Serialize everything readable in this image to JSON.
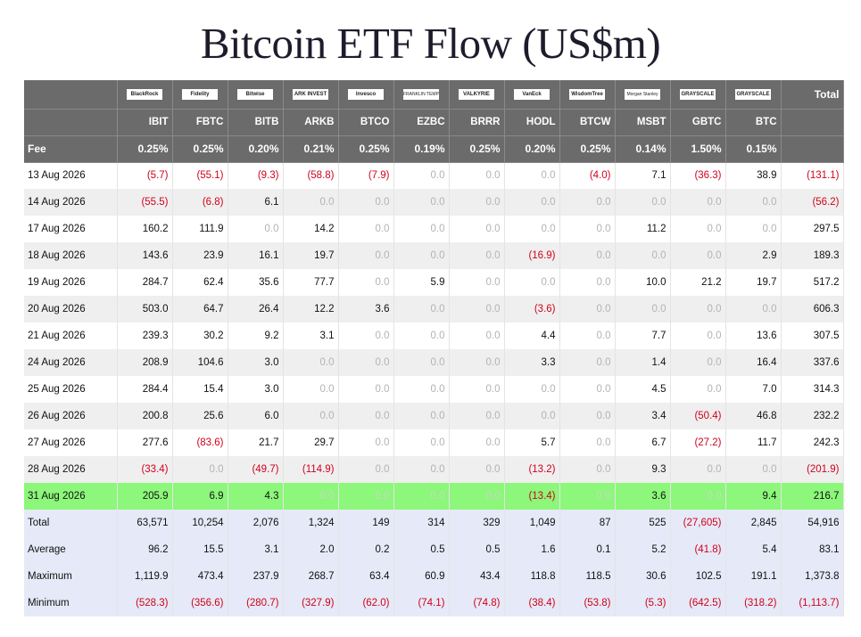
{
  "title": "Bitcoin ETF Flow (US$m)",
  "colors": {
    "header_bg": "#6b6b6b",
    "negative": "#d0021b",
    "zero": "#b3b3b3",
    "highlight": "#8cf77a",
    "stats_bg": "#e6e9f7"
  },
  "header": {
    "total_label": "Total",
    "fee_label": "Fee",
    "logos": [
      "BlackRock",
      "Fidelity",
      "Bitwise",
      "ARK INVEST",
      "Invesco",
      "FRANKLIN TEMPLETON",
      "VALKYRIE",
      "VanEck",
      "WisdomTree",
      "Morgan Stanley",
      "GRAYSCALE",
      "GRAYSCALE"
    ],
    "tickers": [
      "IBIT",
      "FBTC",
      "BITB",
      "ARKB",
      "BTCO",
      "EZBC",
      "BRRR",
      "HODL",
      "BTCW",
      "MSBT",
      "GBTC",
      "BTC"
    ],
    "fees": [
      "0.25%",
      "0.25%",
      "0.20%",
      "0.21%",
      "0.25%",
      "0.19%",
      "0.25%",
      "0.20%",
      "0.25%",
      "0.14%",
      "1.50%",
      "0.15%"
    ]
  },
  "rows": [
    {
      "date": "13 Aug 2026",
      "values": [
        "(5.7)",
        "(55.1)",
        "(9.3)",
        "(58.8)",
        "(7.9)",
        "0.0",
        "0.0",
        "0.0",
        "(4.0)",
        "7.1",
        "(36.3)",
        "38.9"
      ],
      "total": "(131.1)"
    },
    {
      "date": "14 Aug 2026",
      "values": [
        "(55.5)",
        "(6.8)",
        "6.1",
        "0.0",
        "0.0",
        "0.0",
        "0.0",
        "0.0",
        "0.0",
        "0.0",
        "0.0",
        "0.0"
      ],
      "total": "(56.2)"
    },
    {
      "date": "17 Aug 2026",
      "values": [
        "160.2",
        "111.9",
        "0.0",
        "14.2",
        "0.0",
        "0.0",
        "0.0",
        "0.0",
        "0.0",
        "11.2",
        "0.0",
        "0.0"
      ],
      "total": "297.5"
    },
    {
      "date": "18 Aug 2026",
      "values": [
        "143.6",
        "23.9",
        "16.1",
        "19.7",
        "0.0",
        "0.0",
        "0.0",
        "(16.9)",
        "0.0",
        "0.0",
        "0.0",
        "2.9"
      ],
      "total": "189.3"
    },
    {
      "date": "19 Aug 2026",
      "values": [
        "284.7",
        "62.4",
        "35.6",
        "77.7",
        "0.0",
        "5.9",
        "0.0",
        "0.0",
        "0.0",
        "10.0",
        "21.2",
        "19.7"
      ],
      "total": "517.2"
    },
    {
      "date": "20 Aug 2026",
      "values": [
        "503.0",
        "64.7",
        "26.4",
        "12.2",
        "3.6",
        "0.0",
        "0.0",
        "(3.6)",
        "0.0",
        "0.0",
        "0.0",
        "0.0"
      ],
      "total": "606.3"
    },
    {
      "date": "21 Aug 2026",
      "values": [
        "239.3",
        "30.2",
        "9.2",
        "3.1",
        "0.0",
        "0.0",
        "0.0",
        "4.4",
        "0.0",
        "7.7",
        "0.0",
        "13.6"
      ],
      "total": "307.5"
    },
    {
      "date": "24 Aug 2026",
      "values": [
        "208.9",
        "104.6",
        "3.0",
        "0.0",
        "0.0",
        "0.0",
        "0.0",
        "3.3",
        "0.0",
        "1.4",
        "0.0",
        "16.4"
      ],
      "total": "337.6"
    },
    {
      "date": "25 Aug 2026",
      "values": [
        "284.4",
        "15.4",
        "3.0",
        "0.0",
        "0.0",
        "0.0",
        "0.0",
        "0.0",
        "0.0",
        "4.5",
        "0.0",
        "7.0"
      ],
      "total": "314.3"
    },
    {
      "date": "26 Aug 2026",
      "values": [
        "200.8",
        "25.6",
        "6.0",
        "0.0",
        "0.0",
        "0.0",
        "0.0",
        "0.0",
        "0.0",
        "3.4",
        "(50.4)",
        "46.8"
      ],
      "total": "232.2"
    },
    {
      "date": "27 Aug 2026",
      "values": [
        "277.6",
        "(83.6)",
        "21.7",
        "29.7",
        "0.0",
        "0.0",
        "0.0",
        "5.7",
        "0.0",
        "6.7",
        "(27.2)",
        "11.7"
      ],
      "total": "242.3"
    },
    {
      "date": "28 Aug 2026",
      "values": [
        "(33.4)",
        "0.0",
        "(49.7)",
        "(114.9)",
        "0.0",
        "0.0",
        "0.0",
        "(13.2)",
        "0.0",
        "9.3",
        "0.0",
        "0.0"
      ],
      "total": "(201.9)"
    },
    {
      "date": "31 Aug 2026",
      "values": [
        "205.9",
        "6.9",
        "4.3",
        "0.0",
        "0.0",
        "0.0",
        "0.0",
        "(13.4)",
        "0.0",
        "3.6",
        "0.0",
        "9.4"
      ],
      "total": "216.7",
      "highlight": true
    }
  ],
  "stats": [
    {
      "label": "Total",
      "values": [
        "63,571",
        "10,254",
        "2,076",
        "1,324",
        "149",
        "314",
        "329",
        "1,049",
        "87",
        "525",
        "(27,605)",
        "2,845"
      ],
      "total": "54,916"
    },
    {
      "label": "Average",
      "values": [
        "96.2",
        "15.5",
        "3.1",
        "2.0",
        "0.2",
        "0.5",
        "0.5",
        "1.6",
        "0.1",
        "5.2",
        "(41.8)",
        "5.4"
      ],
      "total": "83.1"
    },
    {
      "label": "Maximum",
      "values": [
        "1,119.9",
        "473.4",
        "237.9",
        "268.7",
        "63.4",
        "60.9",
        "43.4",
        "118.8",
        "118.5",
        "30.6",
        "102.5",
        "191.1"
      ],
      "total": "1,373.8"
    },
    {
      "label": "Minimum",
      "values": [
        "(528.3)",
        "(356.6)",
        "(280.7)",
        "(327.9)",
        "(62.0)",
        "(74.1)",
        "(74.8)",
        "(38.4)",
        "(53.8)",
        "(5.3)",
        "(642.5)",
        "(318.2)"
      ],
      "total": "(1,113.7)"
    }
  ]
}
